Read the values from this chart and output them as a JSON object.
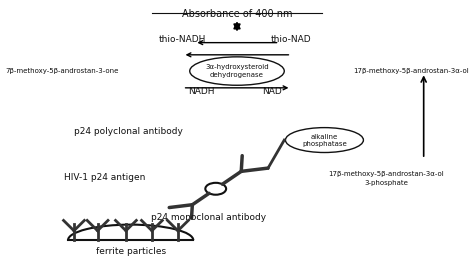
{
  "title": "Absorbance of 400 nm",
  "bg_color": "#ffffff",
  "text_color": "#111111",
  "fs": 6.5,
  "dark": "#111111",
  "gray": "#333333",
  "labels": {
    "thio_nadh": "thio-NADH",
    "thio_nad": "thio-NAD",
    "enzyme_line1": "3α-hydroxysteroid",
    "enzyme_line2": "dehydrogenase",
    "left_compound": "7β-methoxy-5β-androstan-3-one",
    "right_compound": "17β-methoxy-5β-androstan-3α-ol",
    "nadh": "NADH",
    "nad": "NAD",
    "polyclonal": "p24 polyclonal antibody",
    "ap_line1": "alkaline",
    "ap_line2": "phosphatase",
    "antigen": "HIV-1 p24 antigen",
    "bottom_right_1": "17β-methoxy-5β-androstan-3α-ol",
    "bottom_right_2": "3-phosphate",
    "monoclonal": "p24 monoclonal antibody",
    "ferrite": "ferrite particles"
  }
}
